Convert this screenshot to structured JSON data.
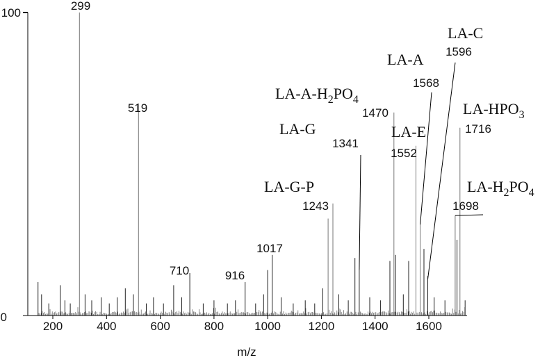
{
  "chart_data": {
    "type": "bar",
    "xlabel": "m/z",
    "ylabel": "",
    "xlim": [
      100,
      1750
    ],
    "ylim": [
      0,
      100
    ],
    "xticks": [
      200,
      400,
      600,
      800,
      1000,
      1200,
      1400,
      1600
    ],
    "yticks": [
      0,
      100
    ],
    "grid": false,
    "peaks": [
      {
        "mz": 145,
        "intensity": 11
      },
      {
        "mz": 158,
        "intensity": 7
      },
      {
        "mz": 185,
        "intensity": 4
      },
      {
        "mz": 228,
        "intensity": 10
      },
      {
        "mz": 245,
        "intensity": 5
      },
      {
        "mz": 265,
        "intensity": 4
      },
      {
        "mz": 299,
        "intensity": 100,
        "label": "299"
      },
      {
        "mz": 320,
        "intensity": 7
      },
      {
        "mz": 345,
        "intensity": 5
      },
      {
        "mz": 380,
        "intensity": 6
      },
      {
        "mz": 410,
        "intensity": 4
      },
      {
        "mz": 440,
        "intensity": 6
      },
      {
        "mz": 470,
        "intensity": 9
      },
      {
        "mz": 500,
        "intensity": 7
      },
      {
        "mz": 519,
        "intensity": 70,
        "label": "519"
      },
      {
        "mz": 548,
        "intensity": 4
      },
      {
        "mz": 575,
        "intensity": 6
      },
      {
        "mz": 612,
        "intensity": 4
      },
      {
        "mz": 650,
        "intensity": 10
      },
      {
        "mz": 680,
        "intensity": 6
      },
      {
        "mz": 710,
        "intensity": 14,
        "label": "710"
      },
      {
        "mz": 760,
        "intensity": 4
      },
      {
        "mz": 800,
        "intensity": 5
      },
      {
        "mz": 850,
        "intensity": 4
      },
      {
        "mz": 880,
        "intensity": 5
      },
      {
        "mz": 916,
        "intensity": 11,
        "label": "916"
      },
      {
        "mz": 955,
        "intensity": 4
      },
      {
        "mz": 985,
        "intensity": 7
      },
      {
        "mz": 1000,
        "intensity": 15
      },
      {
        "mz": 1017,
        "intensity": 20,
        "label": "1017"
      },
      {
        "mz": 1050,
        "intensity": 6
      },
      {
        "mz": 1095,
        "intensity": 4
      },
      {
        "mz": 1140,
        "intensity": 5
      },
      {
        "mz": 1175,
        "intensity": 4
      },
      {
        "mz": 1205,
        "intensity": 9
      },
      {
        "mz": 1225,
        "intensity": 32
      },
      {
        "mz": 1243,
        "intensity": 37,
        "label": "1243"
      },
      {
        "mz": 1265,
        "intensity": 7
      },
      {
        "mz": 1300,
        "intensity": 5
      },
      {
        "mz": 1325,
        "intensity": 19
      },
      {
        "mz": 1341,
        "intensity": 15,
        "label": "1341"
      },
      {
        "mz": 1380,
        "intensity": 6
      },
      {
        "mz": 1420,
        "intensity": 5
      },
      {
        "mz": 1455,
        "intensity": 18
      },
      {
        "mz": 1470,
        "intensity": 67,
        "label": "1470"
      },
      {
        "mz": 1476,
        "intensity": 20
      },
      {
        "mz": 1505,
        "intensity": 7
      },
      {
        "mz": 1525,
        "intensity": 18
      },
      {
        "mz": 1552,
        "intensity": 56,
        "label": "1552"
      },
      {
        "mz": 1568,
        "intensity": 30,
        "label": "1568"
      },
      {
        "mz": 1582,
        "intensity": 22
      },
      {
        "mz": 1596,
        "intensity": 13,
        "label": "1596"
      },
      {
        "mz": 1620,
        "intensity": 6
      },
      {
        "mz": 1660,
        "intensity": 5
      },
      {
        "mz": 1698,
        "intensity": 33,
        "label": "1698"
      },
      {
        "mz": 1705,
        "intensity": 25
      },
      {
        "mz": 1716,
        "intensity": 62,
        "label": "1716"
      },
      {
        "mz": 1735,
        "intensity": 5
      }
    ],
    "annotations": [
      {
        "text": "LA-C",
        "peak": 1596
      },
      {
        "text": "LA-A",
        "peak": 1568
      },
      {
        "text": "LA-A-H2PO4",
        "peak": 1470
      },
      {
        "text": "LA-HPO3",
        "peak": 1716
      },
      {
        "text": "LA-G",
        "peak": 1341
      },
      {
        "text": "LA-E",
        "peak": 1552
      },
      {
        "text": "LA-G-P",
        "peak": 1243
      },
      {
        "text": "LA-H2PO4",
        "peak": 1698
      }
    ]
  }
}
